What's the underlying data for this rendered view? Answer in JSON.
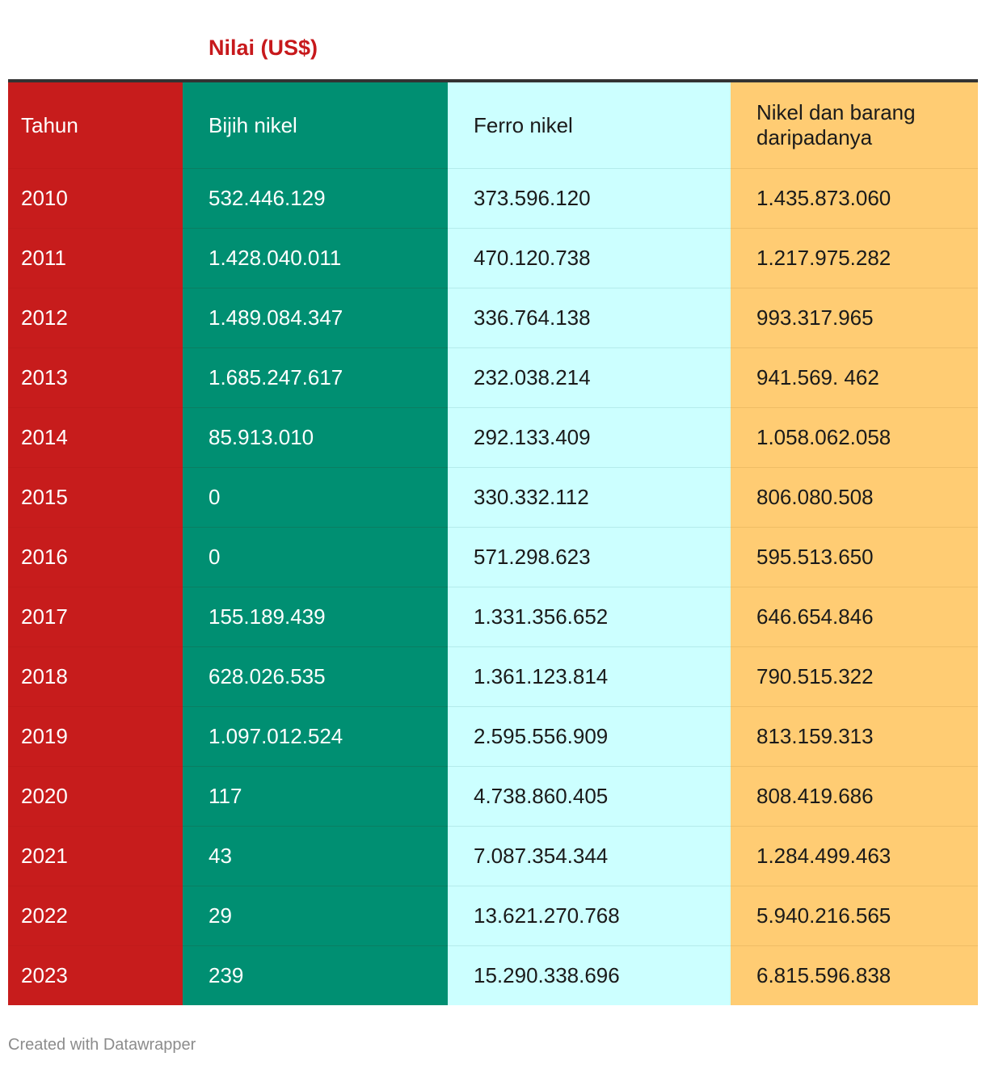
{
  "title": "Nilai (US$)",
  "colors": {
    "title": "#c7191c",
    "col_tahun": "#c71c1c",
    "col_bijih": "#008f72",
    "col_ferro": "#ccffff",
    "col_nikel": "#ffcc73",
    "text_light": "#ffffff",
    "text_dark": "#1a1a1a"
  },
  "chart_data": {
    "type": "table",
    "columns": [
      "Tahun",
      "Bijih nikel",
      "Ferro nikel",
      "Nikel dan barang daripadanya"
    ],
    "rows": [
      [
        "2010",
        "532.446.129",
        "373.596.120",
        "1.435.873.060"
      ],
      [
        "2011",
        "1.428.040.011",
        "470.120.738",
        "1.217.975.282"
      ],
      [
        "2012",
        "1.489.084.347",
        "336.764.138",
        "993.317.965"
      ],
      [
        "2013",
        "1.685.247.617",
        "232.038.214",
        "941.569. 462"
      ],
      [
        "2014",
        "85.913.010",
        "292.133.409",
        "1.058.062.058"
      ],
      [
        "2015",
        "0",
        "330.332.112",
        "806.080.508"
      ],
      [
        "2016",
        "0",
        "571.298.623",
        "595.513.650"
      ],
      [
        "2017",
        "155.189.439",
        "1.331.356.652",
        "646.654.846"
      ],
      [
        "2018",
        "628.026.535",
        "1.361.123.814",
        "790.515.322"
      ],
      [
        "2019",
        "1.097.012.524",
        "2.595.556.909",
        "813.159.313"
      ],
      [
        "2020",
        "117",
        "4.738.860.405",
        "808.419.686"
      ],
      [
        "2021",
        "43",
        "7.087.354.344",
        "1.284.499.463"
      ],
      [
        "2022",
        "29",
        "13.621.270.768",
        "5.940.216.565"
      ],
      [
        "2023",
        "239",
        "15.290.338.696",
        "6.815.596.838"
      ]
    ]
  },
  "footer": "Created with Datawrapper"
}
